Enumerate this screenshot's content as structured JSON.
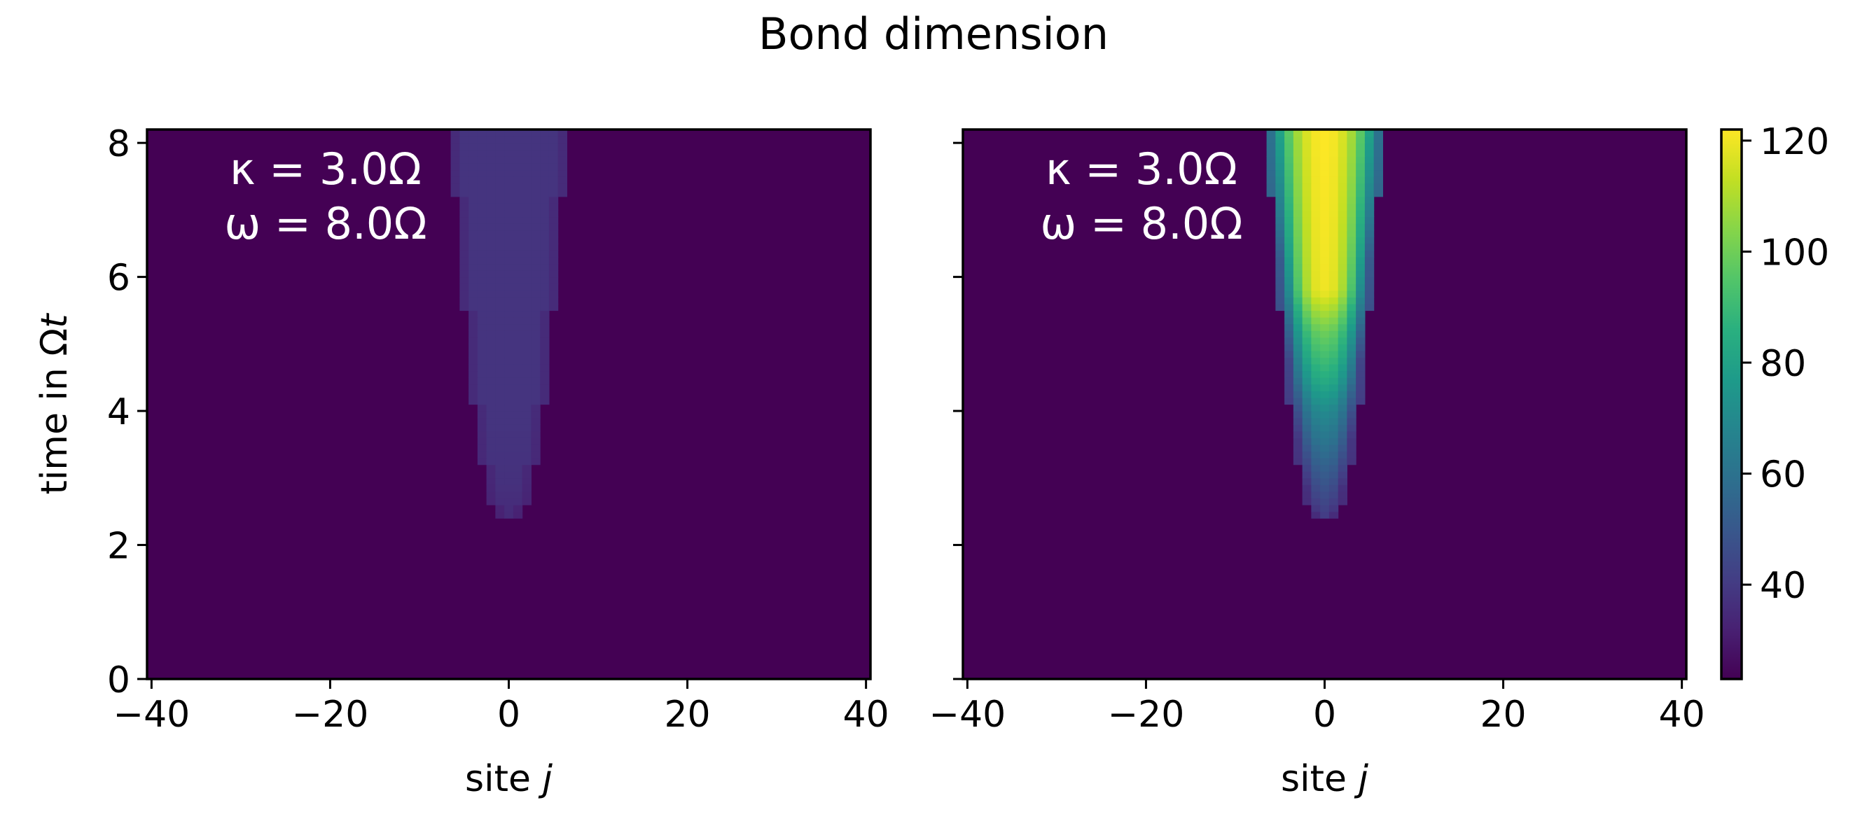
{
  "figure": {
    "title": "Bond dimension"
  },
  "chart_data": {
    "type": "heatmap",
    "title": "Bond dimension",
    "colormap": "viridis",
    "colorbar": {
      "range": [
        23,
        122
      ],
      "ticks": [
        40,
        60,
        80,
        100,
        120
      ],
      "tick_labels": [
        "40",
        "60",
        "80",
        "100",
        "120"
      ]
    },
    "panels": [
      {
        "name": "left",
        "xlabel_text": "site ",
        "xlabel_var": "j",
        "ylabel_text": "time in Ω",
        "ylabel_var": "t",
        "xlim": [
          -40.5,
          40.5
        ],
        "ylim": [
          0,
          8.2
        ],
        "xticks": [
          -40,
          -20,
          0,
          20,
          40
        ],
        "xtick_labels": [
          "−40",
          "−20",
          "0",
          "20",
          "40"
        ],
        "yticks": [
          0,
          2,
          4,
          6,
          8
        ],
        "ytick_labels": [
          "0",
          "2",
          "4",
          "6",
          "8"
        ],
        "annotation_lines": [
          "κ = 3.0Ω",
          "ω = 8.0Ω"
        ],
        "background_value": 23,
        "onset_time": 2.4,
        "region_halfwidth_start": 0.5,
        "region_halfwidth_end": 6,
        "value_profile": [
          [
            2.4,
            35
          ],
          [
            3.0,
            37
          ],
          [
            4.0,
            38
          ],
          [
            8.2,
            38
          ]
        ],
        "center_value_profile": [
          [
            2.4,
            35
          ],
          [
            8.2,
            38
          ]
        ]
      },
      {
        "name": "right",
        "xlabel_text": "site ",
        "xlabel_var": "j",
        "xlim": [
          -40.5,
          40.5
        ],
        "ylim": [
          0,
          8.2
        ],
        "xticks": [
          -40,
          -20,
          0,
          20,
          40
        ],
        "xtick_labels": [
          "−40",
          "−20",
          "0",
          "20",
          "40"
        ],
        "yticks": [
          0,
          2,
          4,
          6,
          8
        ],
        "ytick_labels": [
          "",
          "",
          "",
          "",
          ""
        ],
        "annotation_lines": [
          "κ = 3.0Ω",
          "ω = 8.0Ω"
        ],
        "background_value": 23,
        "onset_time": 2.4,
        "region_halfwidth_start": 0.5,
        "region_halfwidth_end": 6,
        "center_value_profile": [
          [
            2.4,
            40
          ],
          [
            3.0,
            50
          ],
          [
            4.0,
            70
          ],
          [
            4.5,
            85
          ],
          [
            5.2,
            100
          ],
          [
            5.8,
            120
          ],
          [
            8.2,
            122
          ]
        ],
        "edge_value_profile": [
          [
            2.4,
            35
          ],
          [
            4.0,
            40
          ],
          [
            6.0,
            50
          ],
          [
            8.2,
            60
          ]
        ]
      }
    ]
  }
}
